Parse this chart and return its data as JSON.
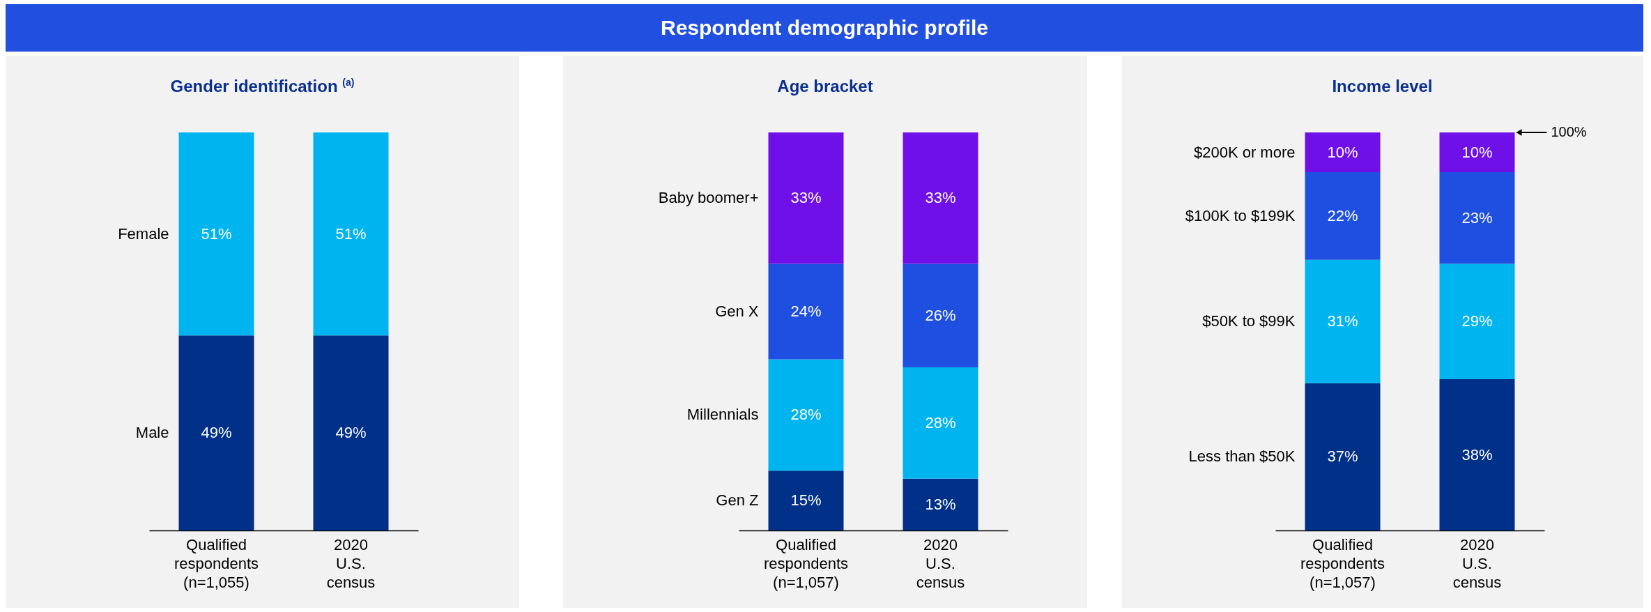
{
  "chart_data": [
    {
      "type": "other",
      "title": "Respondent demographic profile"
    },
    {
      "type": "bar",
      "title": "Gender identification $^{(a)}$",
      "stacked": true,
      "categories": [
        "Qualified\nrespondents\n(n=1,055)",
        "2020\nU.S.\ncensus"
      ],
      "series": [
        {
          "name": "Male",
          "color": "#003087",
          "values": [
            49,
            49
          ],
          "value_labels": [
            "49%",
            "49%"
          ]
        },
        {
          "name": "Female",
          "color": "#00b4f0",
          "values": [
            51,
            51
          ],
          "value_labels": [
            "51%",
            "51%"
          ]
        }
      ]
    },
    {
      "type": "bar",
      "title": "Age bracket",
      "stacked": true,
      "categories": [
        "Qualified\nrespondents\n(n=1,057)",
        "2020\nU.S.\ncensus"
      ],
      "series": [
        {
          "name": "Gen Z",
          "color": "#003087",
          "values": [
            15,
            13
          ],
          "value_labels": [
            "15%",
            "13%"
          ]
        },
        {
          "name": "Millennials",
          "color": "#00b4f0",
          "values": [
            28,
            28
          ],
          "value_labels": [
            "28%",
            "28%"
          ]
        },
        {
          "name": "Gen X",
          "color": "#1f4fe0",
          "values": [
            24,
            26
          ],
          "value_labels": [
            "24%",
            "26%"
          ]
        },
        {
          "name": "Baby boomer+",
          "color": "#7010e8",
          "values": [
            33,
            33
          ],
          "value_labels": [
            "33%",
            "33%"
          ]
        }
      ]
    },
    {
      "type": "bar",
      "title": "Income level",
      "stacked": true,
      "categories": [
        "Qualified\nrespondents\n(n=1,057)",
        "2020\nU.S.\ncensus"
      ],
      "series": [
        {
          "name": "Less than $50K",
          "color": "#003087",
          "values": [
            37,
            38
          ],
          "value_labels": [
            "37%",
            "38%"
          ]
        },
        {
          "name": "$50K to $99K",
          "color": "#00b4f0",
          "values": [
            31,
            29
          ],
          "value_labels": [
            "31%",
            "29%"
          ]
        },
        {
          "name": "$100K to $199K",
          "color": "#1f4fe0",
          "values": [
            22,
            23
          ],
          "value_labels": [
            "22%",
            "23%"
          ]
        },
        {
          "name": "$200K or more",
          "color": "#7010e8",
          "values": [
            10,
            10
          ],
          "value_labels": [
            "10%",
            "10%"
          ]
        }
      ],
      "annotations": [
        "100%"
      ]
    }
  ]
}
